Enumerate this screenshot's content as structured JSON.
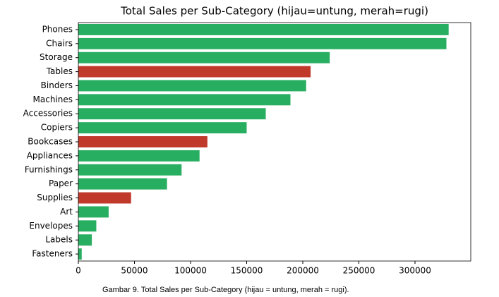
{
  "chart_data": {
    "type": "barh",
    "title": "Total Sales per Sub-Category (hijau=untung, merah=rugi)",
    "caption": "Gambar 9. Total Sales per Sub-Category (hijau = untung, merah = rugi).",
    "categories": [
      "Phones",
      "Chairs",
      "Storage",
      "Tables",
      "Binders",
      "Machines",
      "Accessories",
      "Copiers",
      "Bookcases",
      "Appliances",
      "Furnishings",
      "Paper",
      "Supplies",
      "Art",
      "Envelopes",
      "Labels",
      "Fasteners"
    ],
    "values": [
      330000,
      328000,
      224000,
      207000,
      203000,
      189000,
      167000,
      150000,
      115000,
      108000,
      92000,
      79000,
      47000,
      27000,
      16000,
      12000,
      3000
    ],
    "colors": [
      "#27ae60",
      "#27ae60",
      "#27ae60",
      "#c0392b",
      "#27ae60",
      "#27ae60",
      "#27ae60",
      "#27ae60",
      "#c0392b",
      "#27ae60",
      "#27ae60",
      "#27ae60",
      "#c0392b",
      "#27ae60",
      "#27ae60",
      "#27ae60",
      "#27ae60"
    ],
    "xlim": [
      0,
      349700
    ],
    "xticks": [
      0,
      50000,
      100000,
      150000,
      200000,
      250000,
      300000
    ]
  }
}
